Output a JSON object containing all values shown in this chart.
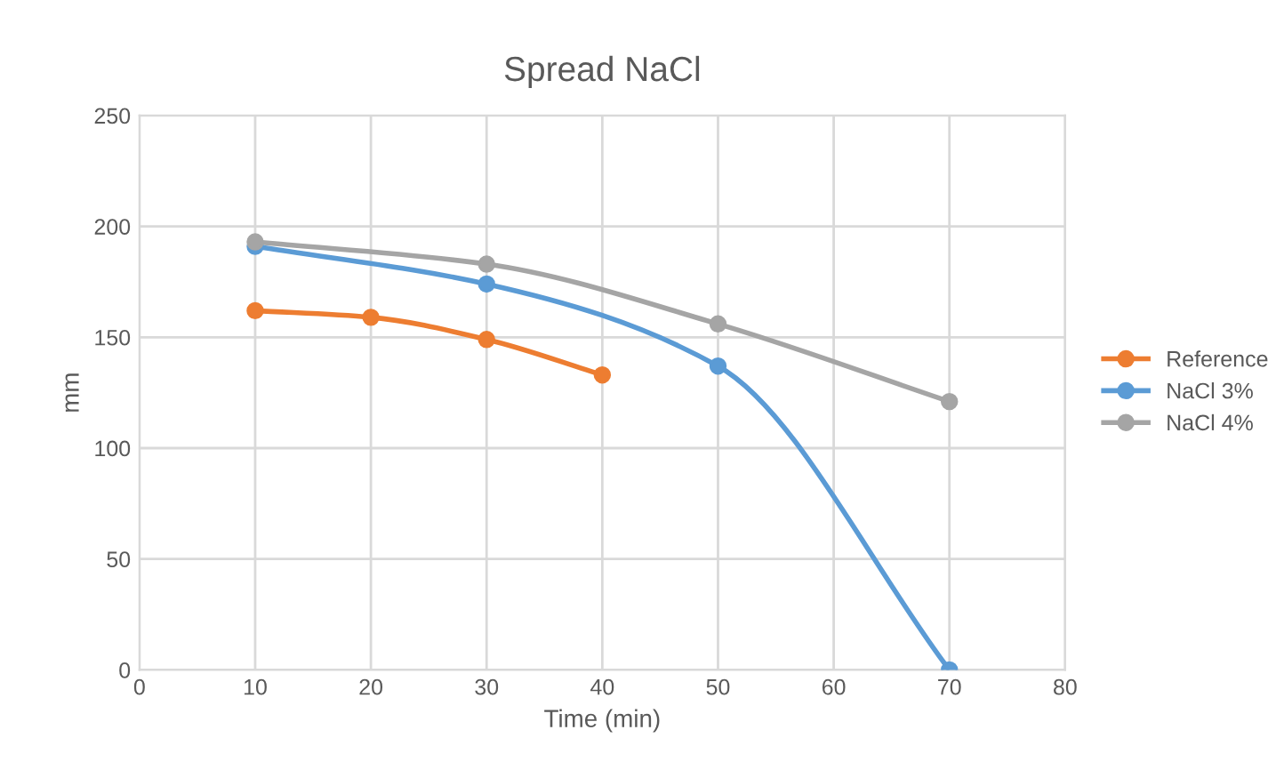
{
  "chart_data": {
    "type": "line",
    "title": "Spread NaCl",
    "xlabel": "Time (min)",
    "ylabel": "mm",
    "series": [
      {
        "name": "Reference",
        "color": "#ed7d31",
        "x": [
          10,
          20,
          30,
          40
        ],
        "values": [
          162,
          159,
          149,
          133
        ]
      },
      {
        "name": "NaCl 3%",
        "color": "#5b9bd5",
        "x": [
          10,
          30,
          50,
          70
        ],
        "values": [
          191,
          174,
          137,
          0
        ]
      },
      {
        "name": "NaCl 4%",
        "color": "#a5a5a5",
        "x": [
          10,
          30,
          50,
          70
        ],
        "values": [
          193,
          183,
          156,
          121
        ]
      }
    ],
    "xlim": [
      0,
      80
    ],
    "xticks": [
      0,
      10,
      20,
      30,
      40,
      50,
      60,
      70,
      80
    ],
    "ylim": [
      0,
      250
    ],
    "yticks": [
      0,
      50,
      100,
      150,
      200,
      250
    ],
    "grid": true,
    "legend": "right",
    "marker": "circle",
    "line_style": "solid"
  }
}
